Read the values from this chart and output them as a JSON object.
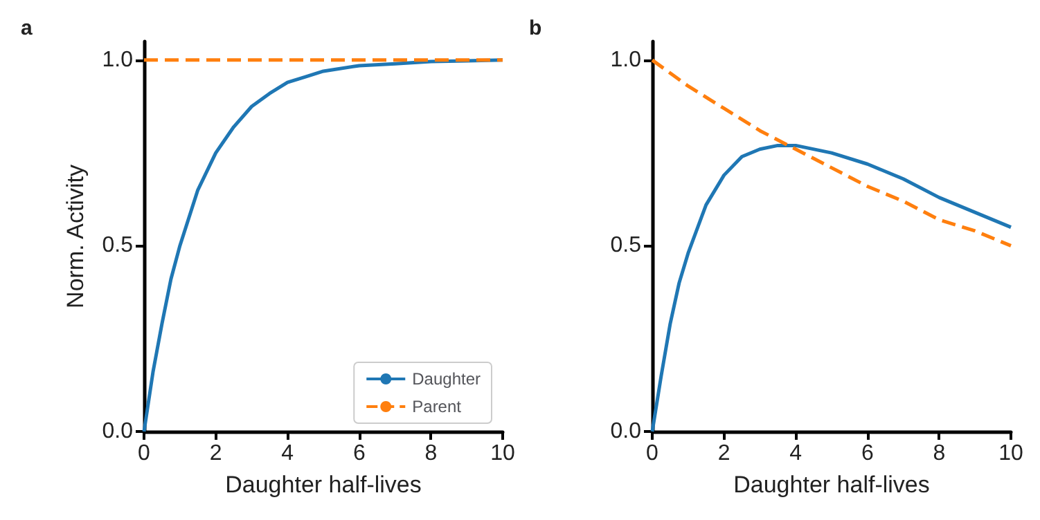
{
  "chart_data": [
    {
      "type": "line",
      "title": "a",
      "xlabel": "Daughter half-lives",
      "ylabel": "Norm. Activity",
      "xlim": [
        0,
        10
      ],
      "xticks": [
        0,
        2,
        4,
        6,
        8,
        10
      ],
      "ylim": [
        0,
        1.05
      ],
      "yticks": [
        {
          "value": 0,
          "label": "0.0"
        },
        {
          "value": 0.5,
          "label": "0.5"
        },
        {
          "value": 1,
          "label": "1.0"
        }
      ],
      "grid": false,
      "legend": "bottom right",
      "marker": "none",
      "series": [
        {
          "name": "Daughter",
          "color": "#1f77b4",
          "line_style": "solid",
          "x": [
            0,
            0.25,
            0.5,
            0.75,
            1,
            1.5,
            2,
            2.5,
            3,
            3.5,
            4,
            4.5,
            5,
            6,
            7,
            8,
            9,
            10
          ],
          "values": [
            0,
            0.16,
            0.29,
            0.41,
            0.5,
            0.65,
            0.75,
            0.82,
            0.875,
            0.91,
            0.94,
            0.955,
            0.97,
            0.985,
            0.99,
            0.996,
            0.998,
            1.0
          ]
        },
        {
          "name": "Parent",
          "color": "#ff7f0e",
          "line_style": "dashed",
          "x": [
            0,
            10
          ],
          "values": [
            1.0,
            1.0
          ]
        }
      ]
    },
    {
      "type": "line",
      "title": "b",
      "xlabel": "Daughter half-lives",
      "xlim": [
        0,
        10
      ],
      "xticks": [
        0,
        2,
        4,
        6,
        8,
        10
      ],
      "ylim": [
        0,
        1.05
      ],
      "yticks": [
        {
          "value": 0,
          "label": "0.0"
        },
        {
          "value": 0.5,
          "label": "0.5"
        },
        {
          "value": 1,
          "label": "1.0"
        }
      ],
      "grid": false,
      "legend": false,
      "marker": "none",
      "series": [
        {
          "color": "#1f77b4",
          "line_style": "solid",
          "x": [
            0,
            0.25,
            0.5,
            0.75,
            1,
            1.5,
            2,
            2.5,
            3,
            3.5,
            4,
            5,
            6,
            7,
            8,
            9,
            10
          ],
          "values": [
            0,
            0.15,
            0.29,
            0.4,
            0.48,
            0.61,
            0.69,
            0.74,
            0.76,
            0.77,
            0.77,
            0.75,
            0.72,
            0.68,
            0.63,
            0.59,
            0.55
          ]
        },
        {
          "color": "#ff7f0e",
          "line_style": "dashed",
          "x": [
            0,
            1,
            2,
            3,
            4,
            5,
            6,
            7,
            8,
            9,
            10
          ],
          "values": [
            1.0,
            0.93,
            0.87,
            0.81,
            0.76,
            0.71,
            0.66,
            0.62,
            0.57,
            0.54,
            0.5
          ]
        }
      ]
    }
  ]
}
